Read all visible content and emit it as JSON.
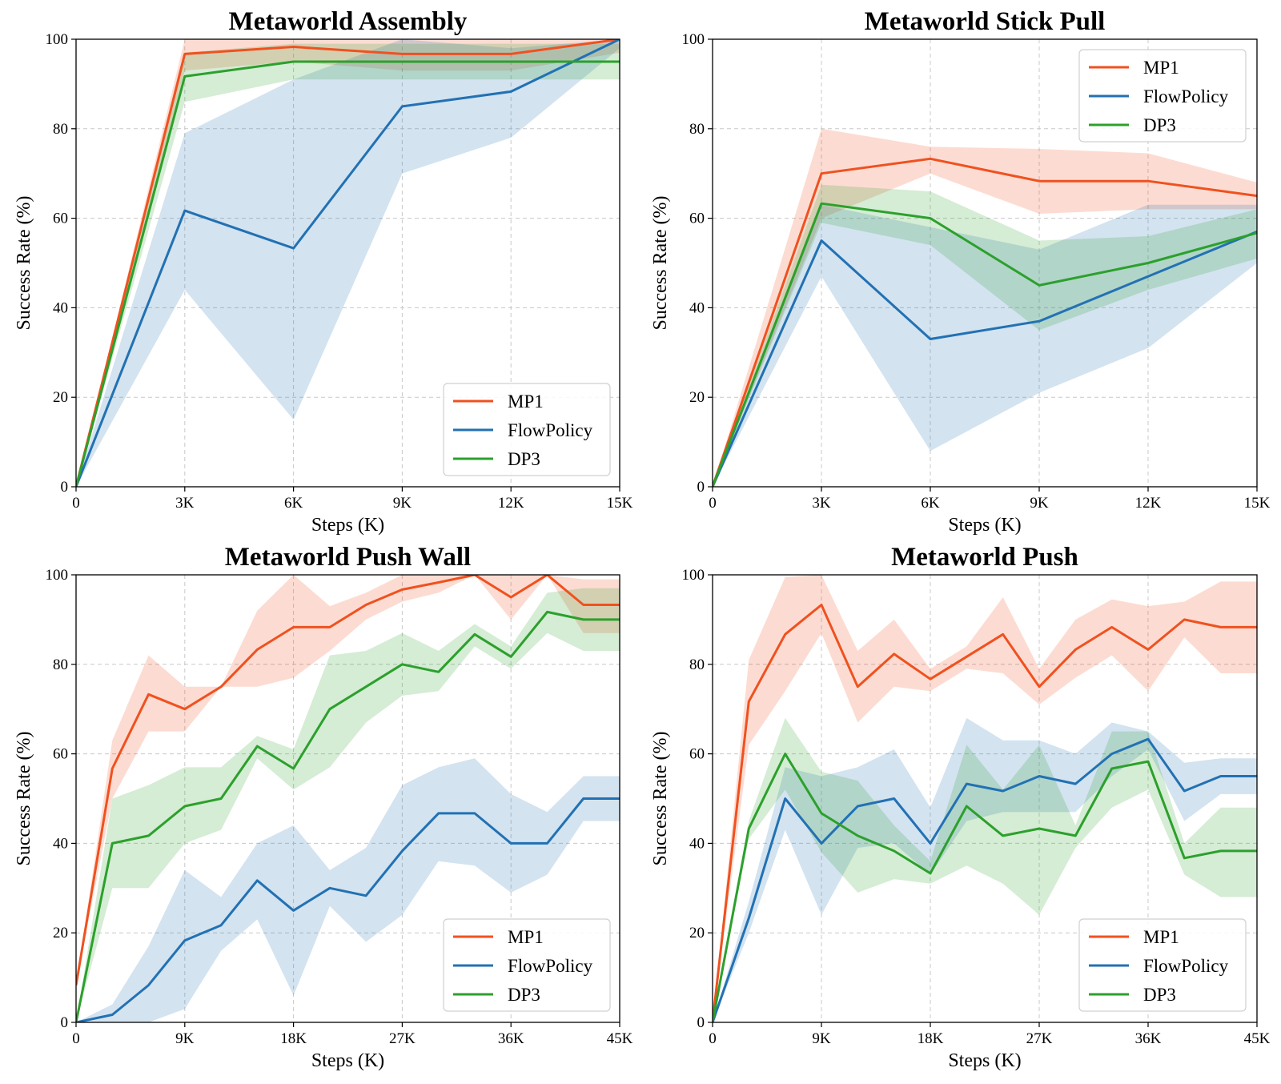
{
  "colors": {
    "MP1": "#f0511f",
    "FlowPolicy": "#2271b3",
    "DP3": "#2ca02c"
  },
  "chart_data": [
    {
      "type": "line",
      "title": "Metaworld Assembly",
      "xlabel": "Steps (K)",
      "ylabel": "Success Rate (%)",
      "xlim": [
        0,
        15
      ],
      "ylim": [
        0,
        100
      ],
      "xticks": [
        0,
        3,
        6,
        9,
        12,
        15
      ],
      "xtick_labels": [
        "0",
        "3K",
        "6K",
        "9K",
        "12K",
        "15K"
      ],
      "yticks": [
        0,
        20,
        40,
        60,
        80,
        100
      ],
      "ytick_labels": [
        "0",
        "20",
        "40",
        "60",
        "80",
        "100"
      ],
      "grid": true,
      "legend": "lower right",
      "x": [
        0,
        3,
        6,
        9,
        12,
        15
      ],
      "series": [
        {
          "name": "MP1",
          "values": [
            0,
            96.7,
            98.3,
            96.7,
            96.7,
            100
          ],
          "lower": [
            0,
            93,
            95,
            93,
            93,
            97
          ],
          "upper": [
            0,
            100,
            100,
            100,
            100,
            100
          ]
        },
        {
          "name": "FlowPolicy",
          "values": [
            0,
            61.7,
            53.3,
            85,
            88.3,
            100
          ],
          "lower": [
            0,
            44,
            15,
            70,
            78,
            98
          ],
          "upper": [
            0,
            79,
            91,
            100,
            98,
            100
          ]
        },
        {
          "name": "DP3",
          "values": [
            0,
            91.7,
            95,
            95,
            95,
            95
          ],
          "lower": [
            0,
            86,
            91,
            91,
            91,
            91
          ],
          "upper": [
            0,
            97,
            99,
            99,
            99,
            99
          ]
        }
      ]
    },
    {
      "type": "line",
      "title": "Metaworld Stick Pull",
      "xlabel": "Steps (K)",
      "ylabel": "Success Rate (%)",
      "xlim": [
        0,
        15
      ],
      "ylim": [
        0,
        100
      ],
      "xticks": [
        0,
        3,
        6,
        9,
        12,
        15
      ],
      "xtick_labels": [
        "0",
        "3K",
        "6K",
        "9K",
        "12K",
        "15K"
      ],
      "yticks": [
        0,
        20,
        40,
        60,
        80,
        100
      ],
      "ytick_labels": [
        "0",
        "20",
        "40",
        "60",
        "80",
        "100"
      ],
      "grid": true,
      "legend": "upper right",
      "x": [
        0,
        3,
        6,
        9,
        12,
        15
      ],
      "series": [
        {
          "name": "MP1",
          "values": [
            0,
            70,
            73.3,
            68.3,
            68.3,
            65
          ],
          "lower": [
            0,
            60,
            70,
            61,
            62,
            62
          ],
          "upper": [
            0,
            80,
            76,
            75.5,
            74.5,
            68
          ]
        },
        {
          "name": "FlowPolicy",
          "values": [
            0,
            55,
            33,
            37,
            47,
            57
          ],
          "lower": [
            0,
            47,
            8,
            21,
            31,
            50
          ],
          "upper": [
            0,
            63,
            58,
            53,
            63,
            63
          ]
        },
        {
          "name": "DP3",
          "values": [
            0,
            63.3,
            60,
            45,
            50,
            56.7
          ],
          "lower": [
            0,
            59,
            54,
            35,
            44,
            51
          ],
          "upper": [
            0,
            67.5,
            66,
            55,
            56,
            62
          ]
        }
      ]
    },
    {
      "type": "line",
      "title": "Metaworld Push Wall",
      "xlabel": "Steps (K)",
      "ylabel": "Success Rate (%)",
      "xlim": [
        0,
        45
      ],
      "ylim": [
        0,
        100
      ],
      "xticks": [
        0,
        9,
        18,
        27,
        36,
        45
      ],
      "xtick_labels": [
        "0",
        "9K",
        "18K",
        "27K",
        "36K",
        "45K"
      ],
      "yticks": [
        0,
        20,
        40,
        60,
        80,
        100
      ],
      "ytick_labels": [
        "0",
        "20",
        "40",
        "60",
        "80",
        "100"
      ],
      "grid": true,
      "legend": "lower right",
      "x": [
        0,
        3,
        6,
        9,
        12,
        15,
        18,
        21,
        24,
        27,
        30,
        33,
        36,
        39,
        42,
        45
      ],
      "series": [
        {
          "name": "MP1",
          "values": [
            8.3,
            56.7,
            73.3,
            70,
            75,
            83.3,
            88.3,
            88.3,
            93.3,
            96.7,
            98.3,
            100,
            95,
            100,
            93.3,
            93.3
          ],
          "lower": [
            8.3,
            50,
            65,
            65,
            75,
            75,
            77,
            83,
            90,
            94,
            96,
            100,
            90,
            100,
            87,
            87
          ],
          "upper": [
            8.3,
            63,
            82,
            75,
            75,
            92,
            100,
            93,
            96,
            100,
            100,
            100,
            100,
            100,
            99,
            99
          ]
        },
        {
          "name": "FlowPolicy",
          "values": [
            0,
            1.7,
            8.3,
            18.3,
            21.7,
            31.7,
            25,
            30,
            28.3,
            38.3,
            46.7,
            46.7,
            40,
            40,
            50,
            50
          ],
          "lower": [
            0,
            0,
            0,
            3,
            16,
            23,
            6,
            26,
            18,
            24,
            36,
            35,
            29,
            33,
            45,
            45
          ],
          "upper": [
            0,
            4,
            17,
            34,
            28,
            40,
            44,
            34,
            39,
            53,
            57,
            59,
            51,
            47,
            55,
            55
          ]
        },
        {
          "name": "DP3",
          "values": [
            0,
            40,
            41.7,
            48.3,
            50,
            61.7,
            56.7,
            70,
            75,
            80,
            78.3,
            86.7,
            81.7,
            91.7,
            90,
            90
          ],
          "lower": [
            0,
            30,
            30,
            40,
            43,
            59,
            52,
            57,
            67,
            73,
            74,
            84,
            79,
            87,
            83,
            83
          ],
          "upper": [
            0,
            50,
            53,
            57,
            57,
            64,
            61,
            82,
            83,
            87,
            83,
            89,
            84,
            96,
            97,
            97
          ]
        }
      ]
    },
    {
      "type": "line",
      "title": "Metaworld Push",
      "xlabel": "Steps (K)",
      "ylabel": "Success Rate (%)",
      "xlim": [
        0,
        45
      ],
      "ylim": [
        0,
        100
      ],
      "xticks": [
        0,
        9,
        18,
        27,
        36,
        45
      ],
      "xtick_labels": [
        "0",
        "9K",
        "18K",
        "27K",
        "36K",
        "45K"
      ],
      "yticks": [
        0,
        20,
        40,
        60,
        80,
        100
      ],
      "ytick_labels": [
        "0",
        "20",
        "40",
        "60",
        "80",
        "100"
      ],
      "grid": true,
      "legend": "lower right",
      "x": [
        0,
        3,
        6,
        9,
        12,
        15,
        18,
        21,
        24,
        27,
        30,
        33,
        36,
        39,
        42,
        45
      ],
      "series": [
        {
          "name": "MP1",
          "values": [
            0,
            71.7,
            86.7,
            93.3,
            75,
            82.3,
            76.7,
            81.7,
            86.7,
            75,
            83.3,
            88.3,
            83.3,
            90,
            88.3,
            88.3
          ],
          "lower": [
            0,
            62,
            74,
            87,
            67,
            75,
            74,
            79,
            78,
            71,
            77,
            82,
            74,
            86,
            78,
            78
          ],
          "upper": [
            0,
            81,
            99.5,
            100,
            83,
            90,
            79,
            84,
            95,
            79,
            90,
            94.5,
            93,
            94,
            98.5,
            98.5
          ]
        },
        {
          "name": "FlowPolicy",
          "values": [
            0,
            23.3,
            50,
            40,
            48.3,
            50,
            40,
            53.3,
            51.7,
            55,
            53.3,
            60,
            63.3,
            51.7,
            55,
            55
          ],
          "lower": [
            0,
            20,
            43,
            24,
            39,
            40,
            33,
            45,
            47,
            47,
            47,
            55,
            61,
            45,
            51,
            51
          ],
          "upper": [
            0,
            27,
            57,
            55,
            57,
            61,
            48,
            68,
            63,
            63,
            60,
            67,
            65,
            58,
            59,
            59
          ]
        },
        {
          "name": "DP3",
          "values": [
            0,
            43.3,
            60,
            46.7,
            41.7,
            38.3,
            33.3,
            48.3,
            41.7,
            43.3,
            41.7,
            56.7,
            58.3,
            36.7,
            38.3,
            38.3
          ],
          "lower": [
            0,
            41,
            52,
            38,
            29,
            32,
            31,
            35,
            31,
            24,
            39,
            48,
            52,
            33,
            28,
            28
          ],
          "upper": [
            0,
            45,
            68,
            56,
            54,
            44,
            36,
            62,
            52,
            62,
            44,
            65,
            65,
            40,
            48,
            48
          ]
        }
      ]
    }
  ]
}
